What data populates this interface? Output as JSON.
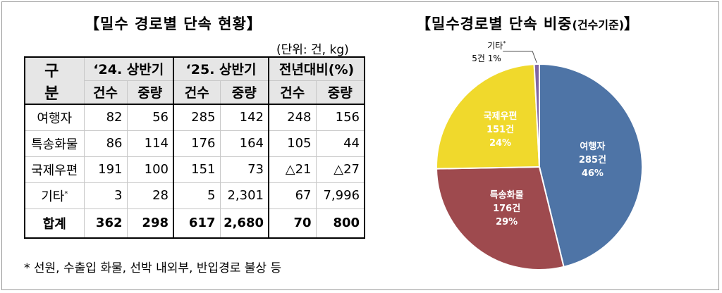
{
  "left_title": "【밀수 경로별 단속 현황】",
  "right_title_main": "【밀수경로별 단속 비중",
  "right_title_small": "(건수기준)",
  "right_title_end": "】",
  "unit_note": "(단위: 건, kg)",
  "table": {
    "corner": "구 분",
    "groups": [
      "‘24. 상반기",
      "‘25. 상반기",
      "전년대비(%)"
    ],
    "subheaders": [
      "건수",
      "중량",
      "건수",
      "중량",
      "건수",
      "중량"
    ],
    "rows": [
      {
        "label": "여행자",
        "mark": "",
        "values": [
          "82",
          "56",
          "285",
          "142",
          "248",
          "156"
        ]
      },
      {
        "label": "특송화물",
        "mark": "",
        "values": [
          "86",
          "114",
          "176",
          "164",
          "105",
          "44"
        ]
      },
      {
        "label": "국제우편",
        "mark": "",
        "values": [
          "191",
          "100",
          "151",
          "73",
          "△21",
          "△27"
        ]
      },
      {
        "label": "기타",
        "mark": "*",
        "values": [
          "3",
          "28",
          "5",
          "2,301",
          "67",
          "7,996"
        ]
      }
    ],
    "total": {
      "label": "합계",
      "values": [
        "362",
        "298",
        "617",
        "2,680",
        "70",
        "800"
      ]
    }
  },
  "footnote": "* 선원, 수출입 화물, 선박 내외부, 반입경로 불상 등",
  "chart_data": {
    "type": "pie",
    "title": "【밀수경로별 단속 비중(건수기준)】",
    "slices": [
      {
        "name": "여행자",
        "count_label": "285건",
        "percent_label": "46%",
        "value": 285,
        "color": "#4e74a6"
      },
      {
        "name": "특송화물",
        "count_label": "176건",
        "percent_label": "29%",
        "value": 176,
        "color": "#9e4a4e"
      },
      {
        "name": "국제우편",
        "count_label": "151건",
        "percent_label": "24%",
        "value": 151,
        "color": "#f0d92c"
      },
      {
        "name": "기타",
        "mark": "*",
        "count_label": "5건",
        "percent_label": "1%",
        "value": 5,
        "color": "#8066a3"
      }
    ]
  }
}
